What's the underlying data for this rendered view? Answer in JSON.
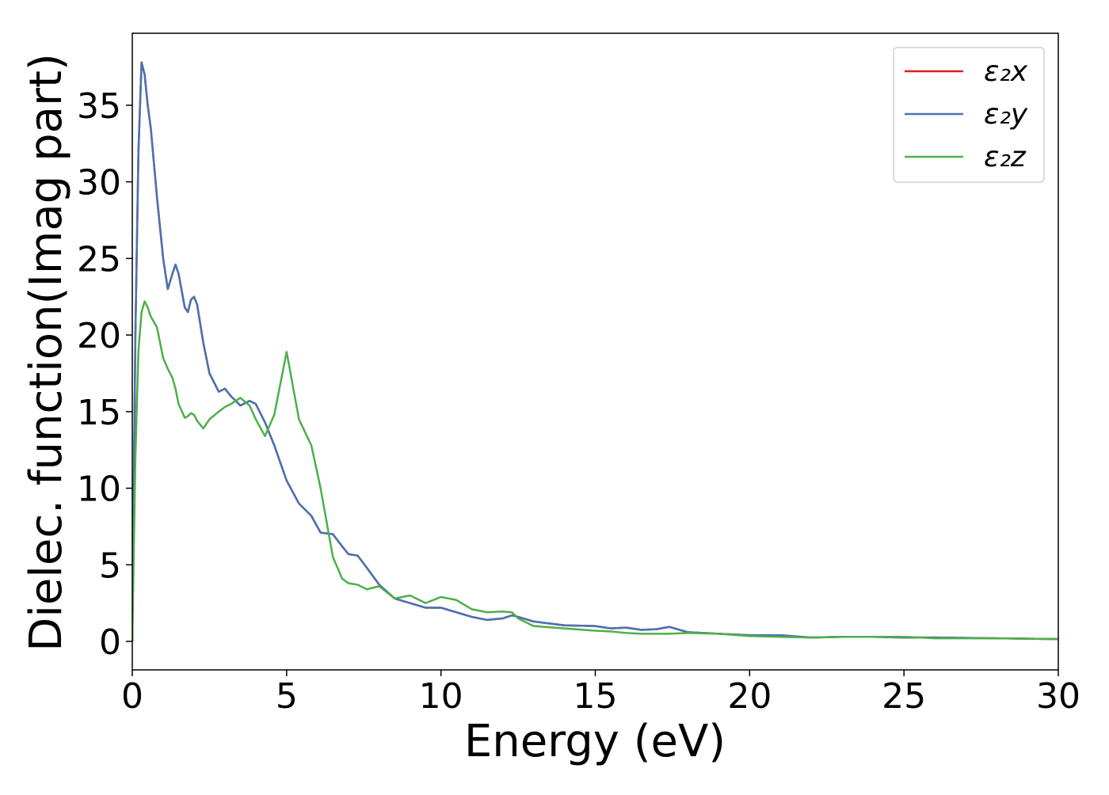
{
  "chart_data": {
    "type": "line",
    "xlabel": "Energy (eV)",
    "ylabel": "Dielec. function(Imag part)",
    "x": [
      0,
      0.1,
      0.2,
      0.3,
      0.4,
      0.5,
      0.6,
      0.8,
      1.0,
      1.15,
      1.3,
      1.4,
      1.5,
      1.7,
      1.8,
      1.9,
      2.0,
      2.1,
      2.3,
      2.5,
      2.8,
      3.0,
      3.2,
      3.5,
      3.8,
      4.0,
      4.3,
      4.6,
      5.0,
      5.4,
      5.8,
      6.1,
      6.5,
      6.8,
      7.0,
      7.3,
      7.6,
      8.0,
      8.5,
      9.0,
      9.5,
      10.0,
      10.5,
      11.0,
      11.5,
      12.0,
      12.3,
      12.5,
      13.0,
      14.0,
      15.0,
      15.5,
      16.0,
      16.5,
      17.0,
      17.4,
      18.0,
      19.0,
      20.0,
      21.0,
      22.0,
      23.0,
      24.0,
      25.0,
      26.0,
      28.0,
      30.0
    ],
    "series": [
      {
        "name": "ε₂x",
        "color": "#e41a1c",
        "values": [
          0,
          20,
          32,
          37.8,
          37,
          35,
          33.5,
          29,
          25,
          23,
          24,
          24.6,
          24,
          21.8,
          21.5,
          22.3,
          22.5,
          22,
          19.5,
          17.5,
          16.3,
          16.5,
          16,
          15.4,
          15.7,
          15.5,
          14.3,
          12.8,
          10.5,
          9,
          8.2,
          7.1,
          7,
          6.2,
          5.7,
          5.6,
          4.8,
          3.7,
          2.8,
          2.5,
          2.2,
          2.2,
          1.9,
          1.6,
          1.4,
          1.5,
          1.7,
          1.6,
          1.3,
          1.05,
          1.0,
          0.85,
          0.9,
          0.75,
          0.8,
          0.95,
          0.6,
          0.5,
          0.4,
          0.4,
          0.25,
          0.3,
          0.3,
          0.25,
          0.25,
          0.2,
          0.15
        ]
      },
      {
        "name": "ε₂y",
        "color": "#4574b2",
        "values": [
          0,
          20,
          32,
          37.8,
          37,
          35,
          33.5,
          29,
          25,
          23,
          24,
          24.6,
          24,
          21.8,
          21.5,
          22.3,
          22.5,
          22,
          19.5,
          17.5,
          16.3,
          16.5,
          16,
          15.4,
          15.7,
          15.5,
          14.3,
          12.8,
          10.5,
          9,
          8.2,
          7.1,
          7,
          6.2,
          5.7,
          5.6,
          4.8,
          3.7,
          2.8,
          2.5,
          2.2,
          2.2,
          1.9,
          1.6,
          1.4,
          1.5,
          1.7,
          1.6,
          1.3,
          1.05,
          1.0,
          0.85,
          0.9,
          0.75,
          0.8,
          0.95,
          0.6,
          0.5,
          0.4,
          0.4,
          0.25,
          0.3,
          0.3,
          0.25,
          0.25,
          0.2,
          0.15
        ]
      },
      {
        "name": "ε₂z",
        "color": "#4daf4a",
        "values": [
          0,
          12,
          19,
          21.5,
          22.2,
          21.8,
          21.2,
          20.5,
          18.5,
          17.8,
          17.2,
          16.5,
          15.5,
          14.6,
          14.7,
          14.9,
          14.8,
          14.4,
          13.9,
          14.5,
          15,
          15.3,
          15.5,
          15.9,
          15.4,
          14.5,
          13.4,
          14.8,
          18.9,
          14.5,
          12.8,
          10,
          5.5,
          4.1,
          3.8,
          3.7,
          3.4,
          3.6,
          2.8,
          3.0,
          2.5,
          2.9,
          2.7,
          2.1,
          1.9,
          1.95,
          1.9,
          1.5,
          1.0,
          0.85,
          0.7,
          0.65,
          0.55,
          0.5,
          0.5,
          0.5,
          0.55,
          0.5,
          0.35,
          0.3,
          0.25,
          0.3,
          0.3,
          0.3,
          0.2,
          0.2,
          0.15
        ]
      }
    ],
    "xlim": [
      0,
      30
    ],
    "xticks": [
      0,
      5,
      10,
      15,
      20,
      25,
      30
    ],
    "ylim": [
      -1.86,
      39.7
    ],
    "yticks": [
      0,
      5,
      10,
      15,
      20,
      25,
      30,
      35
    ],
    "grid": false,
    "legend": "upper right"
  }
}
